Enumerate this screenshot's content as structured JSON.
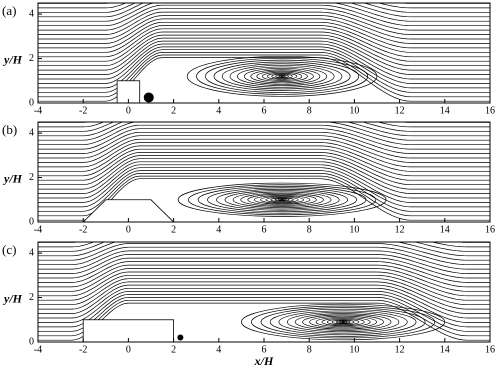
{
  "chart_data": [
    {
      "type": "streamline",
      "label": "(a)",
      "ylabel": "y/H",
      "xlim": [
        -4,
        16
      ],
      "ylim": [
        0,
        4.5
      ],
      "xticks": [
        -4,
        -2,
        0,
        2,
        4,
        6,
        8,
        10,
        12,
        14,
        16
      ],
      "yticks": [
        0,
        2,
        4
      ]
    },
    {
      "type": "streamline",
      "label": "(b)",
      "ylabel": "y/H",
      "xlim": [
        -4,
        16
      ],
      "ylim": [
        0,
        4.5
      ],
      "xticks": [
        -4,
        -2,
        0,
        2,
        4,
        6,
        8,
        10,
        12,
        14,
        16
      ],
      "yticks": [
        0,
        2,
        4
      ]
    },
    {
      "type": "streamline",
      "label": "(c)",
      "ylabel": "y/H",
      "xlabel": "x/H",
      "xlim": [
        -4,
        16
      ],
      "ylim": [
        0,
        4.5
      ],
      "xticks": [
        -4,
        -2,
        0,
        2,
        4,
        6,
        8,
        10,
        12,
        14,
        16
      ],
      "yticks": [
        0,
        2,
        4
      ]
    }
  ]
}
